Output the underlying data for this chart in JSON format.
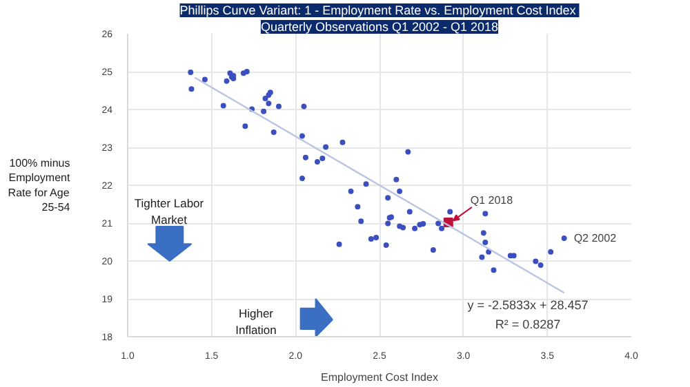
{
  "chart_data": {
    "type": "scatter",
    "title": "Phillips Curve Variant:  1 - Employment Rate vs. Employment Cost Index",
    "subtitle": "Quarterly Observations Q1 2002 - Q1 2018",
    "xlabel": "Employment Cost Index",
    "ylabel": "100% minus Employment Rate for Age 25-54",
    "xlim": [
      1,
      4
    ],
    "ylim": [
      18,
      26
    ],
    "xticks": [
      {
        "value": 1,
        "label": "1.0"
      },
      {
        "value": 1.5,
        "label": "1.5"
      },
      {
        "value": 2,
        "label": "2.0"
      },
      {
        "value": 2.5,
        "label": "2.5"
      },
      {
        "value": 3,
        "label": "3.0"
      },
      {
        "value": 3.5,
        "label": "3.5"
      },
      {
        "value": 4,
        "label": "4.0"
      }
    ],
    "yticks": [
      18,
      19,
      20,
      21,
      22,
      23,
      24,
      25,
      26
    ],
    "grid": true,
    "series": [
      {
        "marker": "circle",
        "color": "#3c4fc0",
        "x": [
          1.375,
          1.38,
          1.46,
          1.57,
          1.59,
          1.61,
          1.62,
          1.63,
          1.63,
          1.69,
          1.71,
          1.7,
          1.74,
          1.81,
          1.82,
          1.84,
          1.84,
          1.85,
          1.87,
          1.9,
          2.04,
          2.05,
          2.04,
          2.06,
          2.13,
          2.16,
          2.18,
          2.28,
          2.33,
          2.42,
          2.37,
          2.55,
          2.6,
          2.62,
          2.39,
          2.26,
          2.45,
          2.48,
          2.54,
          2.55,
          2.57,
          2.67,
          2.68,
          2.56,
          2.62,
          2.64,
          2.71,
          2.74,
          2.76,
          2.82,
          2.85,
          2.87,
          2.92,
          3.13,
          3.12,
          3.13,
          3.15,
          3.11,
          3.18,
          3.28,
          3.3,
          3.43,
          3.46,
          3.52,
          3.6
        ],
        "values": [
          24.98,
          24.54,
          24.79,
          24.1,
          24.75,
          24.96,
          24.86,
          24.89,
          24.82,
          24.96,
          25.0,
          23.56,
          24.01,
          23.95,
          24.29,
          24.16,
          24.38,
          24.45,
          23.4,
          24.08,
          23.3,
          24.08,
          22.18,
          22.73,
          22.62,
          22.71,
          23.01,
          23.13,
          21.84,
          22.03,
          21.43,
          21.67,
          22.15,
          21.84,
          21.05,
          20.44,
          20.58,
          20.62,
          20.42,
          20.99,
          21.16,
          22.88,
          21.3,
          21.14,
          20.92,
          20.88,
          20.86,
          20.96,
          20.98,
          20.29,
          20.99,
          20.86,
          21.3,
          21.25,
          20.74,
          20.49,
          20.24,
          20.1,
          19.76,
          20.14,
          20.14,
          19.99,
          19.89,
          20.24,
          20.6
        ]
      },
      {
        "type": "scatter",
        "marker": "square",
        "color": "#c0103a",
        "x": [
          2.91
        ],
        "values": [
          21.02
        ]
      },
      {
        "type": "line",
        "marker": "none",
        "line_style": "solid",
        "color": "#b9c3e3",
        "x": [
          1.4,
          3.6
        ],
        "values": [
          24.84,
          19.16
        ]
      }
    ],
    "annotations": [
      {
        "text": "Q1 2018",
        "x": 2.91,
        "y": 21.02
      },
      {
        "text": "Q2 2002",
        "x": 3.6,
        "y": 20.6
      },
      "y = -2.5833x + 28.457",
      "R² = 0.8287",
      "Tighter Labor Market",
      "Higher Inflation"
    ]
  }
}
